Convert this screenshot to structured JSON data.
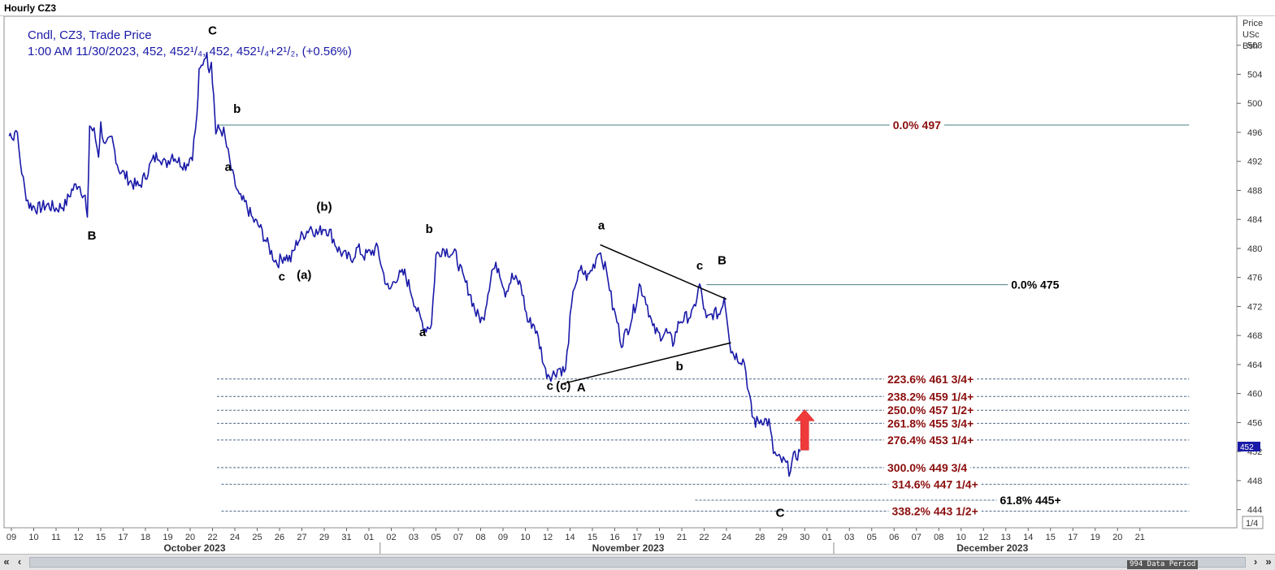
{
  "window": {
    "title": "Hourly CZ3"
  },
  "price_axis": {
    "header": [
      "Price",
      "USc",
      "Bsh"
    ],
    "current_label": "452",
    "zoom_label": "1/4"
  },
  "info": {
    "line1": "Cndl, CZ3, Trade Price",
    "line2": "1:00 AM 11/30/2023, 452, 452¹/₄, 452, 452¹/₄+2¹/₂, (+0.56%)"
  },
  "colors": {
    "price": "#1a1aa8",
    "fib_red": "#8b0d0d",
    "retrace_line": "#4a7f86",
    "arrow": "#ef3a3a"
  },
  "chart_data": {
    "type": "line",
    "title": "Hourly CZ3",
    "subtitle": "Cndl, CZ3, Trade Price",
    "xlabel": "",
    "ylabel": "Price USc Bsh",
    "ylim": [
      441.5,
      512
    ],
    "y_ticks": [
      444,
      448,
      452,
      456,
      460,
      464,
      468,
      472,
      476,
      480,
      484,
      488,
      492,
      496,
      500,
      504,
      508
    ],
    "x_ticks": [
      {
        "label": "09",
        "i": 0
      },
      {
        "label": "10",
        "i": 1
      },
      {
        "label": "11",
        "i": 2
      },
      {
        "label": "12",
        "i": 3
      },
      {
        "label": "15",
        "i": 4
      },
      {
        "label": "17",
        "i": 5
      },
      {
        "label": "18",
        "i": 6
      },
      {
        "label": "19",
        "i": 7
      },
      {
        "label": "20",
        "i": 8
      },
      {
        "label": "22",
        "i": 9
      },
      {
        "label": "24",
        "i": 10
      },
      {
        "label": "25",
        "i": 11
      },
      {
        "label": "26",
        "i": 12
      },
      {
        "label": "27",
        "i": 13
      },
      {
        "label": "29",
        "i": 14
      },
      {
        "label": "31",
        "i": 15
      },
      {
        "label": "01",
        "i": 16
      },
      {
        "label": "02",
        "i": 17
      },
      {
        "label": "03",
        "i": 18
      },
      {
        "label": "05",
        "i": 19
      },
      {
        "label": "07",
        "i": 20
      },
      {
        "label": "08",
        "i": 21
      },
      {
        "label": "09",
        "i": 22
      },
      {
        "label": "10",
        "i": 23
      },
      {
        "label": "12",
        "i": 24
      },
      {
        "label": "14",
        "i": 25
      },
      {
        "label": "15",
        "i": 26
      },
      {
        "label": "16",
        "i": 27
      },
      {
        "label": "17",
        "i": 28
      },
      {
        "label": "19",
        "i": 29
      },
      {
        "label": "21",
        "i": 30
      },
      {
        "label": "22",
        "i": 31
      },
      {
        "label": "24",
        "i": 32
      },
      {
        "label": "28",
        "i": 33.5
      },
      {
        "label": "29",
        "i": 34.5
      },
      {
        "label": "30",
        "i": 35.5
      },
      {
        "label": "01",
        "i": 36.5
      },
      {
        "label": "03",
        "i": 37.5
      },
      {
        "label": "05",
        "i": 38.5
      },
      {
        "label": "06",
        "i": 39.5
      },
      {
        "label": "07",
        "i": 40.5
      },
      {
        "label": "08",
        "i": 41.5
      },
      {
        "label": "10",
        "i": 42.5
      },
      {
        "label": "12",
        "i": 43.5
      },
      {
        "label": "13",
        "i": 44.5
      },
      {
        "label": "14",
        "i": 45.5
      },
      {
        "label": "15",
        "i": 46.5
      },
      {
        "label": "17",
        "i": 47.5
      },
      {
        "label": "19",
        "i": 48.5
      },
      {
        "label": "20",
        "i": 49.5
      },
      {
        "label": "21",
        "i": 50.5
      }
    ],
    "month_labels": [
      {
        "label": "October 2023",
        "i": 8.2
      },
      {
        "label": "November 2023",
        "i": 27.6
      },
      {
        "label": "December 2023",
        "i": 43.9
      }
    ],
    "month_dividers": [
      16.5,
      36.8
    ],
    "series": [
      {
        "values": [
          [
            -0.1,
            495.5
          ],
          [
            0,
            496
          ],
          [
            0.1,
            495
          ],
          [
            0.2,
            497
          ],
          [
            0.4,
            492
          ],
          [
            0.6,
            488
          ],
          [
            0.8,
            486
          ],
          [
            1.2,
            485.5
          ],
          [
            1.6,
            486
          ],
          [
            2,
            485.5
          ],
          [
            2.4,
            486
          ],
          [
            2.7,
            488
          ],
          [
            3,
            489
          ],
          [
            3.3,
            487
          ],
          [
            3.4,
            483.5
          ],
          [
            3.5,
            497
          ],
          [
            3.7,
            496
          ],
          [
            3.9,
            493
          ],
          [
            4,
            497
          ],
          [
            4.2,
            494
          ],
          [
            4.5,
            495
          ],
          [
            4.8,
            491
          ],
          [
            5.1,
            490
          ],
          [
            5.4,
            489
          ],
          [
            5.7,
            488.5
          ],
          [
            6,
            490
          ],
          [
            6.3,
            492
          ],
          [
            6.6,
            493
          ],
          [
            6.9,
            491.5
          ],
          [
            7.2,
            493
          ],
          [
            7.5,
            492
          ],
          [
            7.8,
            491.5
          ],
          [
            8.1,
            493
          ],
          [
            8.3,
            498
          ],
          [
            8.4,
            504
          ],
          [
            8.5,
            505
          ],
          [
            8.7,
            507
          ],
          [
            8.85,
            505
          ],
          [
            8.95,
            506
          ],
          [
            9.05,
            501
          ],
          [
            9.15,
            496
          ],
          [
            9.3,
            496.5
          ],
          [
            9.5,
            496
          ],
          [
            9.7,
            493
          ],
          [
            9.9,
            490
          ],
          [
            10.2,
            487
          ],
          [
            10.5,
            486
          ],
          [
            10.8,
            484
          ],
          [
            11.1,
            483
          ],
          [
            11.4,
            481
          ],
          [
            11.7,
            479
          ],
          [
            11.9,
            478
          ],
          [
            12.2,
            479
          ],
          [
            12.5,
            478.5
          ],
          [
            12.8,
            481
          ],
          [
            13.1,
            482
          ],
          [
            13.4,
            483
          ],
          [
            13.7,
            482
          ],
          [
            14,
            483
          ],
          [
            14.3,
            482
          ],
          [
            14.6,
            480
          ],
          [
            14.9,
            479
          ],
          [
            15.2,
            478.5
          ],
          [
            15.5,
            480
          ],
          [
            15.8,
            479
          ],
          [
            16.1,
            479.5
          ],
          [
            16.4,
            480
          ],
          [
            16.6,
            477
          ],
          [
            16.9,
            474
          ],
          [
            17.2,
            476
          ],
          [
            17.6,
            476.5
          ],
          [
            17.9,
            474
          ],
          [
            18.2,
            471
          ],
          [
            18.5,
            469
          ],
          [
            18.8,
            469.5
          ],
          [
            19,
            479
          ],
          [
            19.3,
            480
          ],
          [
            19.6,
            479.5
          ],
          [
            19.9,
            479
          ],
          [
            20.2,
            476
          ],
          [
            20.5,
            474
          ],
          [
            20.8,
            471
          ],
          [
            21.1,
            470
          ],
          [
            21.5,
            477
          ],
          [
            21.8,
            477.5
          ],
          [
            22.1,
            474
          ],
          [
            22.4,
            476
          ],
          [
            22.8,
            475
          ],
          [
            23.1,
            470
          ],
          [
            23.4,
            469.5
          ],
          [
            23.7,
            466
          ],
          [
            23.9,
            463
          ],
          [
            24.2,
            462.5
          ],
          [
            24.5,
            463.5
          ],
          [
            24.8,
            463
          ],
          [
            25,
            470
          ],
          [
            25.2,
            475
          ],
          [
            25.5,
            477
          ],
          [
            25.8,
            476
          ],
          [
            26.1,
            478
          ],
          [
            26.3,
            480
          ],
          [
            26.5,
            478
          ],
          [
            26.7,
            476
          ],
          [
            26.9,
            472
          ],
          [
            27.1,
            470
          ],
          [
            27.3,
            467
          ],
          [
            27.6,
            469
          ],
          [
            27.9,
            472
          ],
          [
            28.1,
            475
          ],
          [
            28.4,
            473
          ],
          [
            28.7,
            469
          ],
          [
            29,
            468
          ],
          [
            29.3,
            468.5
          ],
          [
            29.6,
            467
          ],
          [
            29.9,
            470
          ],
          [
            30.2,
            470.5
          ],
          [
            30.5,
            471
          ],
          [
            30.8,
            475
          ],
          [
            31.1,
            470
          ],
          [
            31.4,
            471
          ],
          [
            31.7,
            471
          ],
          [
            31.9,
            473.5
          ],
          [
            32.05,
            470
          ],
          [
            32.2,
            466
          ],
          [
            32.5,
            465
          ],
          [
            32.8,
            464.5
          ],
          [
            33,
            460
          ],
          [
            33.15,
            457
          ],
          [
            33.3,
            456
          ],
          [
            33.6,
            456.5
          ],
          [
            33.9,
            456
          ],
          [
            34.1,
            452
          ],
          [
            34.3,
            451
          ],
          [
            34.6,
            450.5
          ],
          [
            34.8,
            449.5
          ],
          [
            35,
            451
          ],
          [
            35.3,
            452
          ]
        ]
      }
    ],
    "fib_levels": [
      {
        "pct": "0.0%",
        "label": "497",
        "y": 497,
        "x_from": 9.3,
        "x_to": 52.7,
        "style": "solid",
        "color": "red"
      },
      {
        "pct": "0.0%",
        "label": "475",
        "y": 475,
        "x_from": 31.1,
        "x_to": 46.8,
        "style": "solid",
        "color": "black"
      },
      {
        "pct": "223.6%",
        "label": "461 3/4+",
        "y": 462,
        "x_from": 9.2,
        "x_to": 52.7,
        "style": "dashed",
        "color": "red"
      },
      {
        "pct": "238.2%",
        "label": "459 1/4+",
        "y": 459.6,
        "x_from": 9.2,
        "x_to": 52.7,
        "style": "dashed",
        "color": "red"
      },
      {
        "pct": "250.0%",
        "label": "457 1/2+",
        "y": 457.7,
        "x_from": 9.2,
        "x_to": 52.7,
        "style": "dashed",
        "color": "red"
      },
      {
        "pct": "261.8%",
        "label": "455 3/4+",
        "y": 455.9,
        "x_from": 9.2,
        "x_to": 52.7,
        "style": "dashed",
        "color": "red"
      },
      {
        "pct": "276.4%",
        "label": "453 1/4+",
        "y": 453.6,
        "x_from": 9.2,
        "x_to": 52.7,
        "style": "dashed",
        "color": "red"
      },
      {
        "pct": "300.0%",
        "label": "449 3/4",
        "y": 449.8,
        "x_from": 9.2,
        "x_to": 52.7,
        "style": "dashed",
        "color": "red"
      },
      {
        "pct": "314.6%",
        "label": "447 1/4+",
        "y": 447.5,
        "x_from": 9.4,
        "x_to": 52.7,
        "style": "dashed",
        "color": "red"
      },
      {
        "pct": "61.8%",
        "label": "445+",
        "y": 445.3,
        "x_from": 30.6,
        "x_to": 46.8,
        "style": "dashed",
        "color": "black"
      },
      {
        "pct": "338.2%",
        "label": "443 1/2+",
        "y": 443.8,
        "x_from": 9.4,
        "x_to": 52.7,
        "style": "dashed",
        "color": "red"
      }
    ],
    "trendlines": [
      {
        "from": [
          26.35,
          480.5
        ],
        "to": [
          32.0,
          473
        ]
      },
      {
        "from": [
          24.6,
          461.3
        ],
        "to": [
          32.2,
          467
        ]
      }
    ],
    "wave_labels": [
      {
        "text": "C",
        "x": 9.0,
        "y": 509.5
      },
      {
        "text": "b",
        "x": 10.1,
        "y": 498.7
      },
      {
        "text": "a",
        "x": 9.7,
        "y": 490.7
      },
      {
        "text": "B",
        "x": 3.6,
        "y": 481.2
      },
      {
        "text": "(b)",
        "x": 14.0,
        "y": 485.2
      },
      {
        "text": "c",
        "x": 12.1,
        "y": 475.6
      },
      {
        "text": "(a)",
        "x": 13.1,
        "y": 475.8
      },
      {
        "text": "b",
        "x": 18.7,
        "y": 482.1
      },
      {
        "text": "a",
        "x": 18.4,
        "y": 467.9
      },
      {
        "text": "a",
        "x": 26.4,
        "y": 482.6
      },
      {
        "text": "c",
        "x": 30.8,
        "y": 477.1
      },
      {
        "text": "B",
        "x": 31.8,
        "y": 477.8
      },
      {
        "text": "b",
        "x": 29.9,
        "y": 463.2
      },
      {
        "text": "c",
        "x": 24.1,
        "y": 460.5
      },
      {
        "text": "(c)",
        "x": 24.7,
        "y": 460.5
      },
      {
        "text": "A",
        "x": 25.5,
        "y": 460.3
      },
      {
        "text": "C",
        "x": 34.4,
        "y": 443
      }
    ],
    "arrow": {
      "x": 35.5,
      "y_base": 452.2,
      "y_tip": 457.8
    },
    "grid": false,
    "legend": "none"
  },
  "scrollbar": {
    "left_first": "«",
    "left": "‹",
    "right": "›",
    "right_last": "»",
    "label": "994 Data Period"
  }
}
